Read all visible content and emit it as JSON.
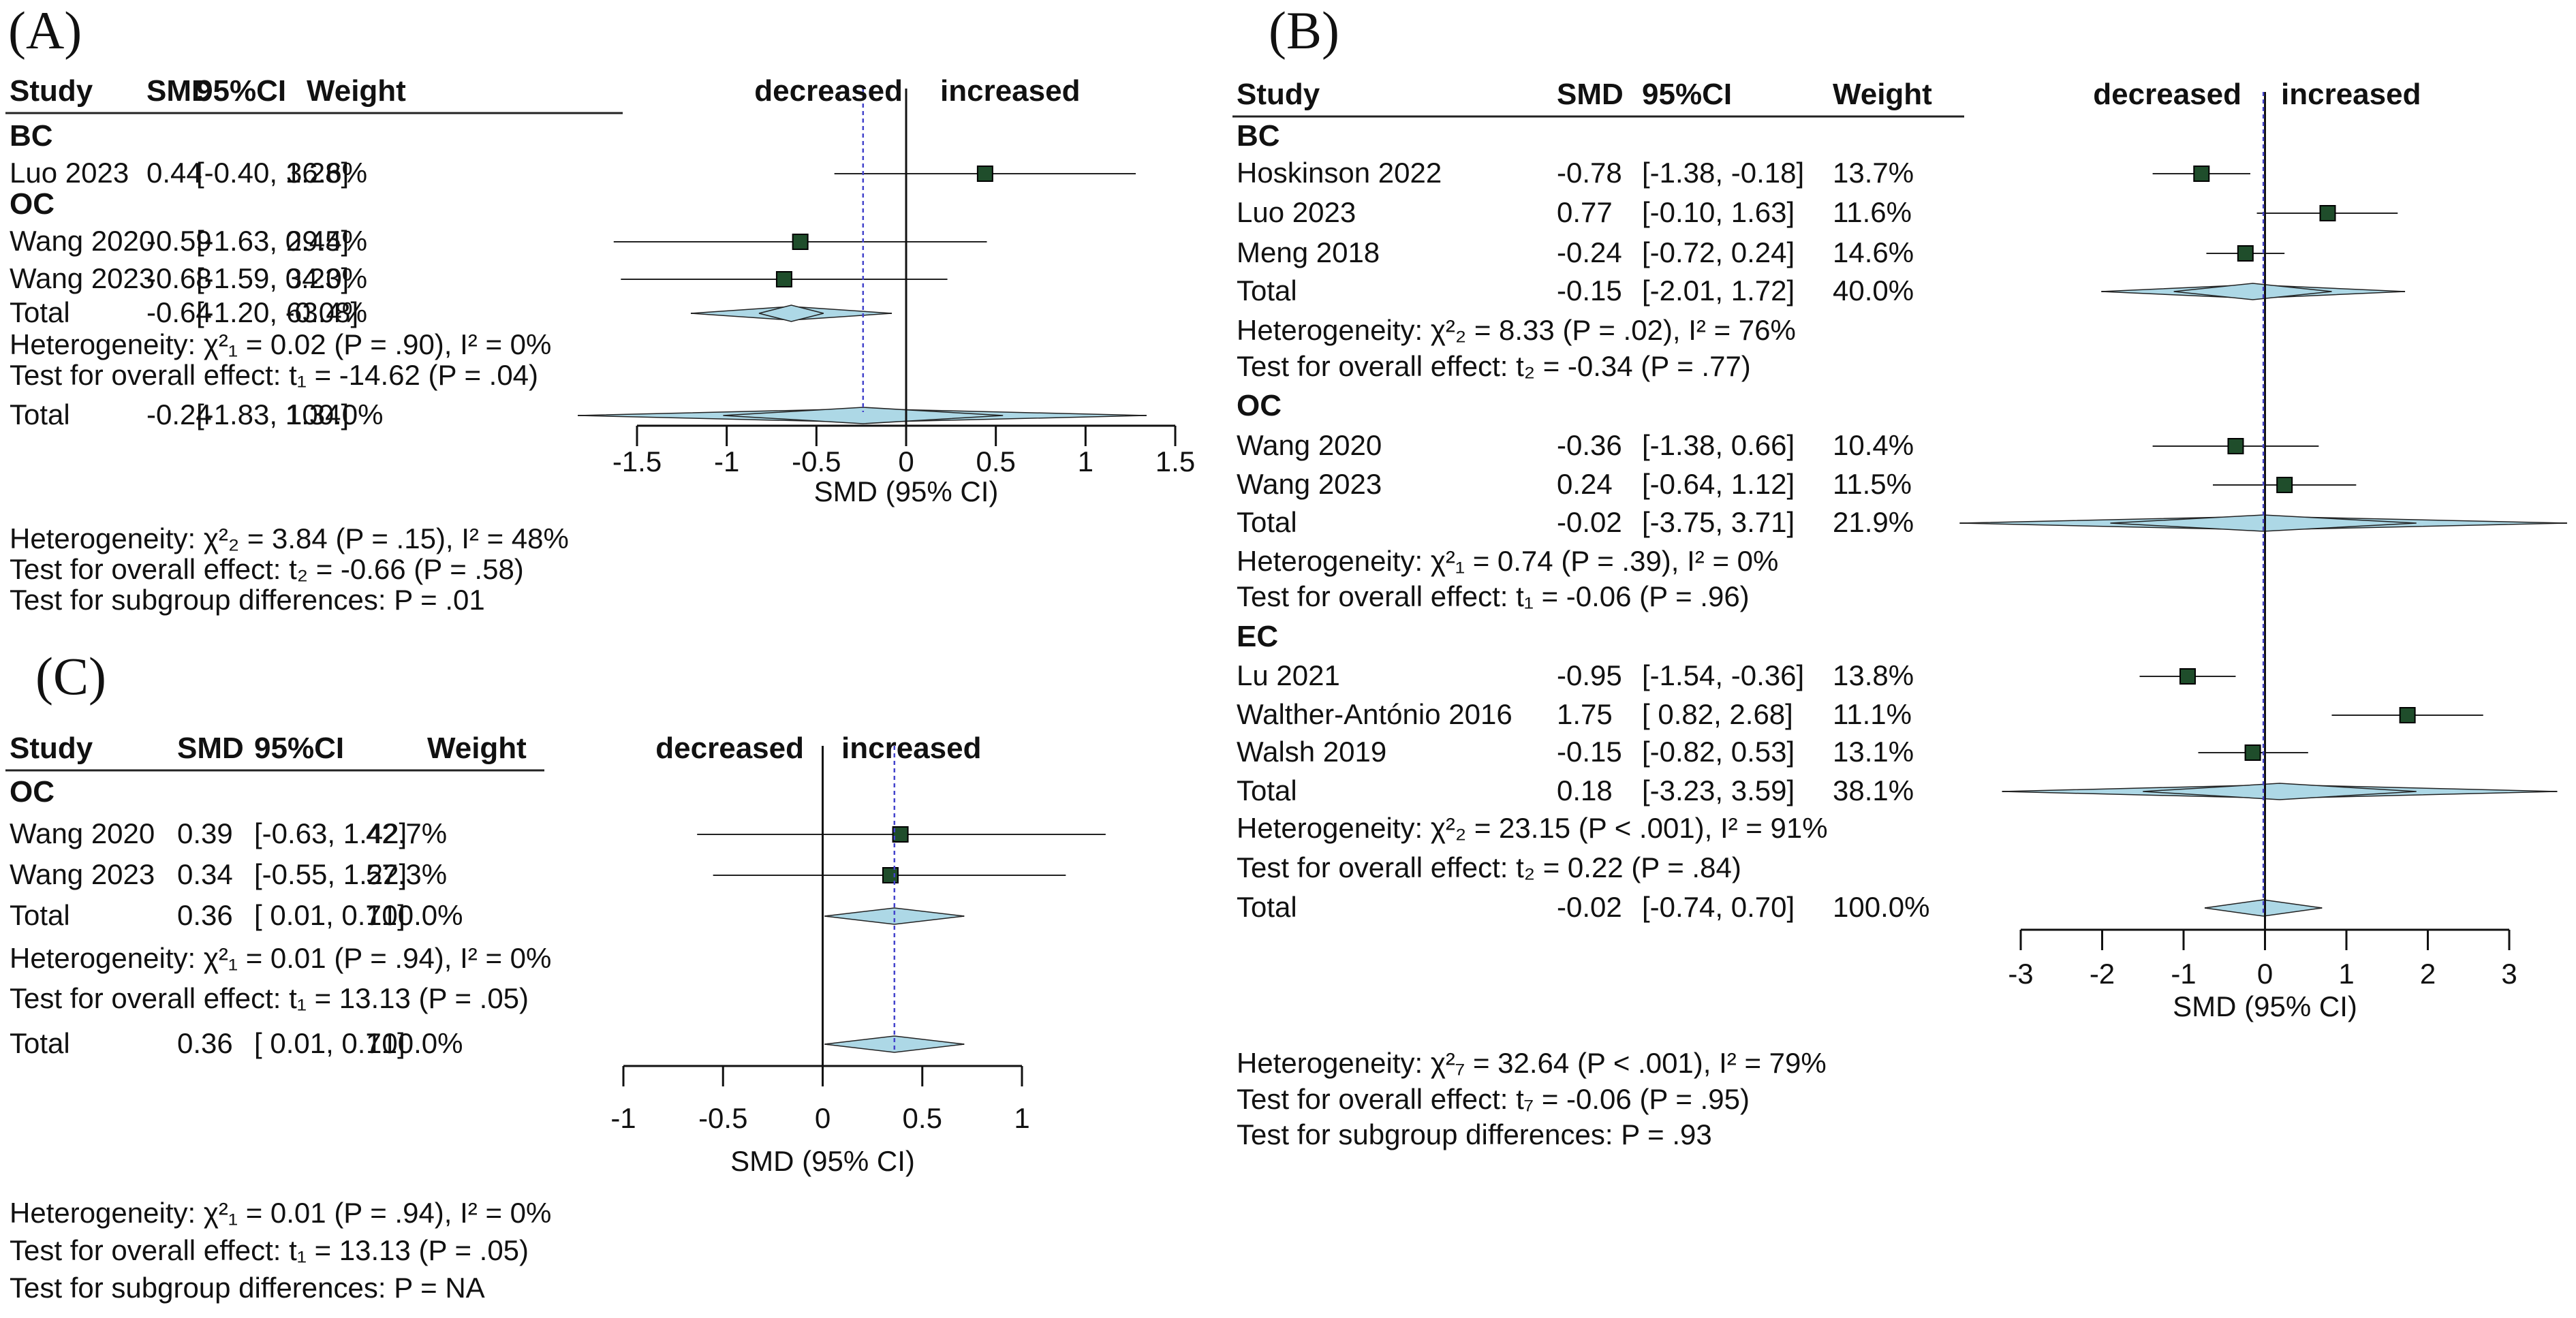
{
  "panel_labels": {
    "A": "(A)",
    "B": "(B)",
    "C": "(C)"
  },
  "headers": {
    "study": "Study",
    "smd": "SMD",
    "ci": "95%CI",
    "weight": "Weight",
    "decreased": "decreased",
    "increased": "increased"
  },
  "colors": {
    "square": "#1f4d2b",
    "diamond_fill": "#add8e6",
    "ref_line": "#4444cc"
  },
  "chart_data": [
    {
      "id": "A",
      "type": "forest",
      "xlabel": "SMD (95% CI)",
      "xlim": [
        -1.5,
        1.5
      ],
      "ticks": [
        "-1.5",
        "-1",
        "-0.5",
        "0",
        "0.5",
        "1",
        "1.5"
      ],
      "overall_line": -0.24,
      "rows": [
        {
          "kind": "group",
          "label": "BC"
        },
        {
          "kind": "study",
          "study": "Luo 2023",
          "smd": "0.44",
          "ci": "[-0.40,  1.28]",
          "weight": "36.6%",
          "est": 0.44,
          "lo": -0.4,
          "hi": 1.28
        },
        {
          "kind": "group",
          "label": "OC"
        },
        {
          "kind": "study",
          "study": "Wang 2020",
          "smd": "-0.59",
          "ci": "[-1.63,  0.45]",
          "weight": "29.4%",
          "est": -0.59,
          "lo": -1.63,
          "hi": 0.45
        },
        {
          "kind": "study",
          "study": "Wang 2023",
          "smd": "-0.68",
          "ci": "[-1.59,  0.23]",
          "weight": "34.0%",
          "est": -0.68,
          "lo": -1.59,
          "hi": 0.23
        },
        {
          "kind": "total",
          "study": "Total",
          "smd": "-0.64",
          "ci": "[-1.20, -0.08]",
          "weight": "63.4%",
          "est": -0.64,
          "lo": -0.82,
          "hi": -0.46,
          "pi_lo": -1.2,
          "pi_hi": -0.08
        },
        {
          "kind": "stat",
          "text": "Heterogeneity: χ²₁ = 0.02 (P = .90), I² = 0%"
        },
        {
          "kind": "stat",
          "text": "Test for overall effect: t₁ = -14.62 (P = .04)"
        },
        {
          "kind": "total",
          "study": "Total",
          "smd": "-0.24",
          "ci": "[-1.83,  1.34]",
          "weight": "100.0%",
          "est": -0.24,
          "lo": -1.02,
          "hi": 0.54,
          "pi_lo": -1.83,
          "pi_hi": 1.34
        }
      ],
      "footer": [
        "Heterogeneity: χ²₂ = 3.84 (P = .15), I² = 48%",
        "Test for overall effect: t₂ = -0.66 (P = .58)",
        "Test for subgroup differences:  P = .01"
      ]
    },
    {
      "id": "B",
      "type": "forest",
      "xlabel": "SMD (95% CI)",
      "xlim": [
        -3,
        3
      ],
      "ticks": [
        "-3",
        "-2",
        "-1",
        "0",
        "1",
        "2",
        "3"
      ],
      "overall_line": -0.02,
      "rows": [
        {
          "kind": "group",
          "label": "BC"
        },
        {
          "kind": "study",
          "study": "Hoskinson 2022",
          "smd": "-0.78",
          "ci": "[-1.38, -0.18]",
          "weight": "13.7%",
          "est": -0.78,
          "lo": -1.38,
          "hi": -0.18
        },
        {
          "kind": "study",
          "study": "Luo 2023",
          "smd": "0.77",
          "ci": "[-0.10,  1.63]",
          "weight": "11.6%",
          "est": 0.77,
          "lo": -0.1,
          "hi": 1.63
        },
        {
          "kind": "study",
          "study": "Meng 2018",
          "smd": "-0.24",
          "ci": "[-0.72,  0.24]",
          "weight": "14.6%",
          "est": -0.24,
          "lo": -0.72,
          "hi": 0.24
        },
        {
          "kind": "total",
          "study": "Total",
          "smd": "-0.15",
          "ci": "[-2.01,  1.72]",
          "weight": "40.0%",
          "est": -0.15,
          "lo": -1.12,
          "hi": 0.82,
          "pi_lo": -2.01,
          "pi_hi": 1.72
        },
        {
          "kind": "stat",
          "text": "Heterogeneity: χ²₂ = 8.33 (P = .02), I² = 76%"
        },
        {
          "kind": "stat",
          "text": "Test for overall effect: t₂ = -0.34 (P = .77)"
        },
        {
          "kind": "group",
          "label": "OC"
        },
        {
          "kind": "study",
          "study": "Wang 2020",
          "smd": "-0.36",
          "ci": "[-1.38,  0.66]",
          "weight": "10.4%",
          "est": -0.36,
          "lo": -1.38,
          "hi": 0.66
        },
        {
          "kind": "study",
          "study": "Wang 2023",
          "smd": "0.24",
          "ci": "[-0.64,  1.12]",
          "weight": "11.5%",
          "est": 0.24,
          "lo": -0.64,
          "hi": 1.12
        },
        {
          "kind": "total",
          "study": "Total",
          "smd": "-0.02",
          "ci": "[-3.75,  3.71]",
          "weight": "21.9%",
          "est": -0.02,
          "lo": -1.9,
          "hi": 1.86,
          "pi_lo": -3.75,
          "pi_hi": 3.71
        },
        {
          "kind": "stat",
          "text": "Heterogeneity: χ²₁ = 0.74 (P = .39), I² = 0%"
        },
        {
          "kind": "stat",
          "text": "Test for overall effect: t₁ = -0.06 (P = .96)"
        },
        {
          "kind": "group",
          "label": "EC"
        },
        {
          "kind": "study",
          "study": "Lu 2021",
          "smd": "-0.95",
          "ci": "[-1.54, -0.36]",
          "weight": "13.8%",
          "est": -0.95,
          "lo": -1.54,
          "hi": -0.36
        },
        {
          "kind": "study",
          "study": "Walther-António 2016",
          "smd": "1.75",
          "ci": "[ 0.82,  2.68]",
          "weight": "11.1%",
          "est": 1.75,
          "lo": 0.82,
          "hi": 2.68
        },
        {
          "kind": "study",
          "study": "Walsh 2019",
          "smd": "-0.15",
          "ci": "[-0.82,  0.53]",
          "weight": "13.1%",
          "est": -0.15,
          "lo": -0.82,
          "hi": 0.53
        },
        {
          "kind": "total",
          "study": "Total",
          "smd": "0.18",
          "ci": "[-3.23,  3.59]",
          "weight": "38.1%",
          "est": 0.18,
          "lo": -1.5,
          "hi": 1.86,
          "pi_lo": -3.23,
          "pi_hi": 3.59
        },
        {
          "kind": "stat",
          "text": "Heterogeneity: χ²₂ = 23.15 (P < .001), I² = 91%"
        },
        {
          "kind": "stat",
          "text": "Test for overall effect: t₂ = 0.22 (P = .84)"
        },
        {
          "kind": "total",
          "study": "Total",
          "smd": "-0.02",
          "ci": "[-0.74,  0.70]",
          "weight": "100.0%",
          "est": -0.02,
          "lo": -0.74,
          "hi": 0.7,
          "pi_lo": -0.74,
          "pi_hi": 0.7
        }
      ],
      "footer": [
        "Heterogeneity: χ²₇ = 32.64 (P < .001), I² = 79%",
        "Test for overall effect: t₇ = -0.06 (P = .95)",
        "Test for subgroup differences:  P = .93"
      ]
    },
    {
      "id": "C",
      "type": "forest",
      "xlabel": "SMD (95% CI)",
      "xlim": [
        -1,
        1
      ],
      "ticks": [
        "-1",
        "-0.5",
        "0",
        "0.5",
        "1"
      ],
      "overall_line": 0.36,
      "rows": [
        {
          "kind": "group",
          "label": "OC"
        },
        {
          "kind": "study",
          "study": "Wang 2020",
          "smd": "0.39",
          "ci": "[-0.63, 1.42]",
          "weight": "42.7%",
          "est": 0.39,
          "lo": -0.63,
          "hi": 1.42
        },
        {
          "kind": "study",
          "study": "Wang 2023",
          "smd": "0.34",
          "ci": "[-0.55, 1.22]",
          "weight": "57.3%",
          "est": 0.34,
          "lo": -0.55,
          "hi": 1.22
        },
        {
          "kind": "total",
          "study": "Total",
          "smd": "0.36",
          "ci": "[ 0.01, 0.71]",
          "weight": "100.0%",
          "est": 0.36,
          "lo": 0.01,
          "hi": 0.71,
          "pi_lo": 0.01,
          "pi_hi": 0.71
        },
        {
          "kind": "stat",
          "text": "Heterogeneity: χ²₁ = 0.01 (P = .94), I² = 0%"
        },
        {
          "kind": "stat",
          "text": "Test for overall effect: t₁ = 13.13 (P = .05)"
        },
        {
          "kind": "total",
          "study": "Total",
          "smd": "0.36",
          "ci": "[ 0.01, 0.71]",
          "weight": "100.0%",
          "est": 0.36,
          "lo": 0.01,
          "hi": 0.71,
          "pi_lo": 0.01,
          "pi_hi": 0.71
        }
      ],
      "footer": [
        "Heterogeneity: χ²₁ = 0.01 (P = .94), I² = 0%",
        "Test for overall effect: t₁ = 13.13 (P = .05)",
        "Test for subgroup differences:  P = NA"
      ]
    }
  ]
}
